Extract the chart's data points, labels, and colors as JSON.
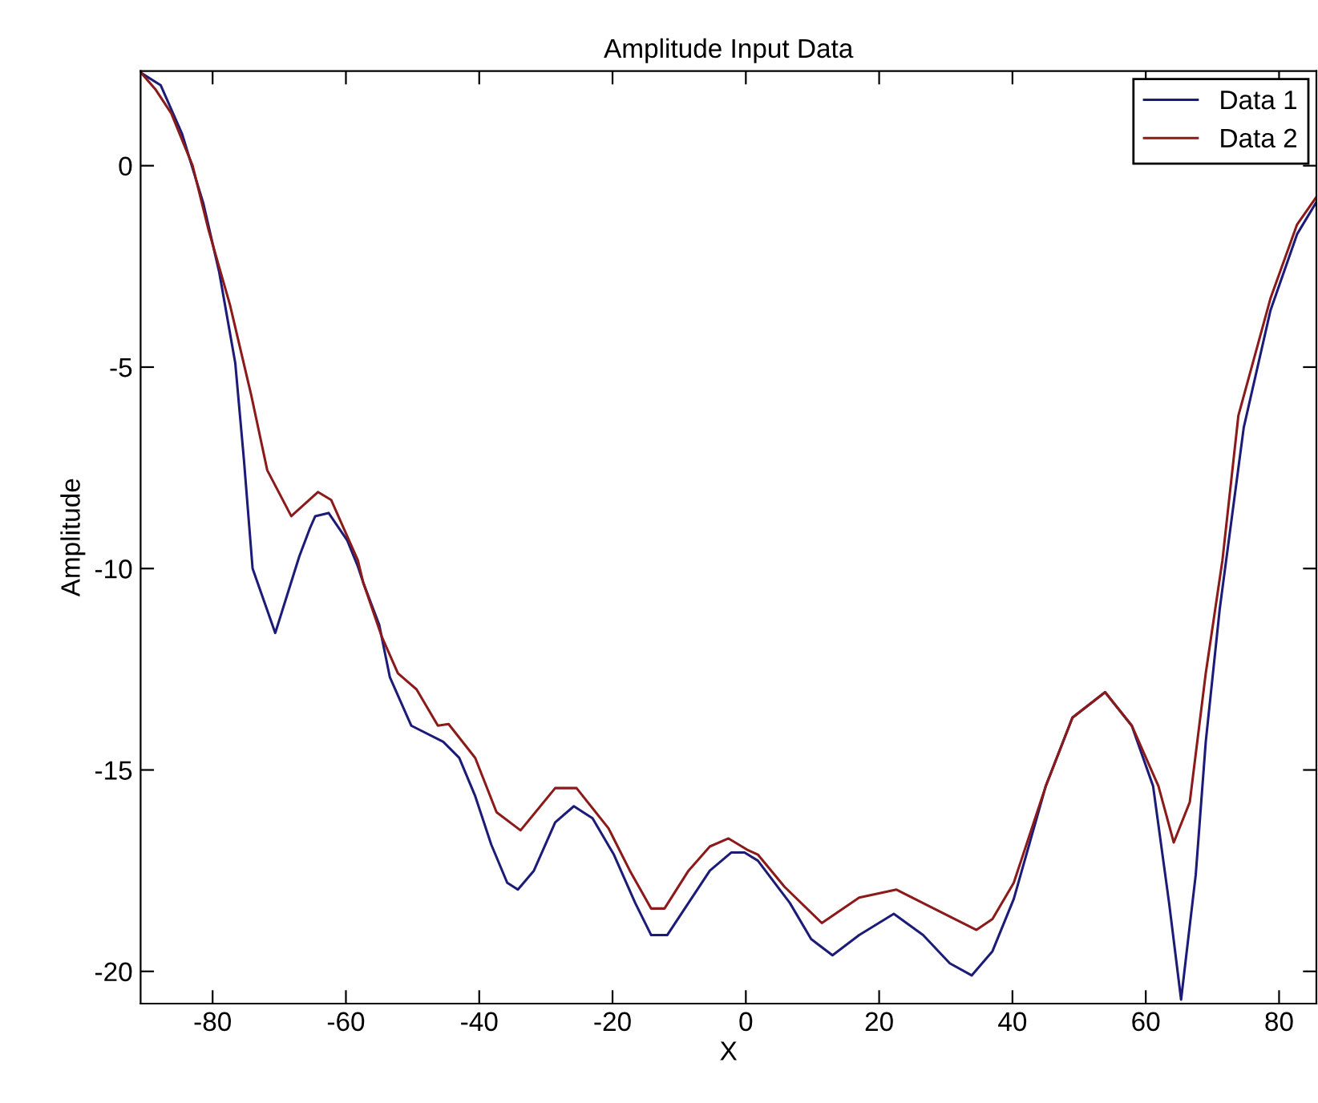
{
  "chart_data": {
    "type": "line",
    "title": "Amplitude Input Data",
    "xlabel": "X",
    "ylabel": "Amplitude",
    "xlim": [
      -90.8,
      85.6
    ],
    "ylim": [
      -20.8,
      2.35
    ],
    "xticks": [
      -80,
      -60,
      -40,
      -20,
      0,
      20,
      40,
      60,
      80
    ],
    "yticks": [
      -20,
      -15,
      -10,
      -5,
      0
    ],
    "grid": false,
    "legend": "top right",
    "marker": "none",
    "line_style": "solid",
    "series": [
      {
        "name": "Data 1",
        "color": "#1c1c78",
        "x": [
          -90.7,
          -87.8,
          -84.6,
          -81.4,
          -79,
          -76.6,
          -75.3,
          -74.0,
          -70.6,
          -67,
          -65.4,
          -64.6,
          -62.6,
          -59.8,
          -58.2,
          -57.4,
          -55,
          -53.4,
          -50.2,
          -45.4,
          -43,
          -40.6,
          -38.2,
          -35.8,
          -34.2,
          -31.8,
          -28.6,
          -25.8,
          -23,
          -19.8,
          -16.6,
          -14.2,
          -11.8,
          -8.6,
          -5.4,
          -2.2,
          -0.2,
          1.8,
          6.6,
          9.8,
          13,
          17,
          22.2,
          26.6,
          30.6,
          33.9,
          37,
          40.2,
          45,
          49,
          53.9,
          57.9,
          61.1,
          63.5,
          65.3,
          67.5,
          69,
          71.1,
          72.7,
          74.7,
          78.7,
          82.7,
          85.5
        ],
        "values": [
          2.3,
          2.0,
          0.8,
          -0.93,
          -2.65,
          -4.9,
          -7.3,
          -10.0,
          -11.6,
          -9.7,
          -9.0,
          -8.7,
          -8.62,
          -9.3,
          -9.95,
          -10.35,
          -11.4,
          -12.7,
          -13.9,
          -14.3,
          -14.7,
          -15.65,
          -16.85,
          -17.8,
          -17.97,
          -17.5,
          -16.3,
          -15.9,
          -16.2,
          -17.1,
          -18.3,
          -19.1,
          -19.1,
          -18.3,
          -17.5,
          -17.05,
          -17.05,
          -17.25,
          -18.3,
          -19.2,
          -19.6,
          -19.1,
          -18.57,
          -19.1,
          -19.8,
          -20.1,
          -19.5,
          -18.2,
          -15.4,
          -13.7,
          -13.07,
          -13.9,
          -15.4,
          -18.3,
          -20.7,
          -17.6,
          -14.3,
          -11.0,
          -9.0,
          -6.5,
          -3.6,
          -1.7,
          -0.93
        ]
      },
      {
        "name": "Data 2",
        "color": "#8b1a1a",
        "x": [
          -90.7,
          -88.6,
          -86.2,
          -83,
          -80.6,
          -77.4,
          -74.2,
          -71.8,
          -68.2,
          -64.2,
          -62.2,
          -58.2,
          -57.4,
          -54.6,
          -52.2,
          -49.4,
          -46.2,
          -44.6,
          -40.6,
          -37.4,
          -33.8,
          -28.6,
          -25.4,
          -20.6,
          -17.4,
          -14.2,
          -12.2,
          -8.6,
          -5.4,
          -2.6,
          0.2,
          1.8,
          5.8,
          11.4,
          17,
          22.6,
          28.2,
          34.6,
          37,
          40.2,
          45,
          49,
          53.9,
          57.9,
          61.9,
          64.2,
          66.6,
          69,
          71.5,
          73.9,
          78.7,
          82.7,
          85.5
        ],
        "values": [
          2.3,
          1.9,
          1.3,
          0,
          -1.6,
          -3.45,
          -5.7,
          -7.56,
          -8.7,
          -8.1,
          -8.3,
          -9.8,
          -10.35,
          -11.7,
          -12.6,
          -13.0,
          -13.9,
          -13.86,
          -14.7,
          -16.05,
          -16.5,
          -15.45,
          -15.45,
          -16.45,
          -17.5,
          -18.44,
          -18.44,
          -17.5,
          -16.9,
          -16.7,
          -16.98,
          -17.1,
          -17.9,
          -18.8,
          -18.17,
          -17.97,
          -18.44,
          -18.97,
          -18.7,
          -17.8,
          -15.4,
          -13.7,
          -13.07,
          -13.9,
          -15.4,
          -16.8,
          -15.8,
          -12.6,
          -9.8,
          -6.2,
          -3.3,
          -1.46,
          -0.8
        ]
      }
    ]
  }
}
